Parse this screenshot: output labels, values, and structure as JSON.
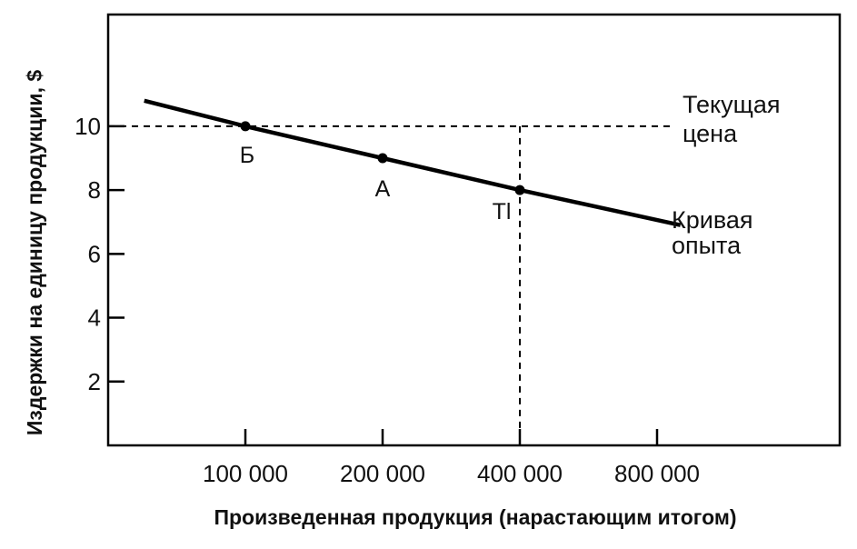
{
  "chart_data": {
    "type": "line",
    "title": "",
    "xlabel": "Произведенная продукция (нарастающим итогом)",
    "ylabel": "Издержки на единицу продукции, $",
    "x_categories": [
      "100 000",
      "200 000",
      "400 000",
      "800 000"
    ],
    "x_scale": "log2",
    "y_ticks": [
      2,
      4,
      6,
      8,
      10
    ],
    "ylim": [
      0,
      13.5
    ],
    "grid": false,
    "series": [
      {
        "name": "Кривая опыта",
        "color": "#000000",
        "x": [
          "60 000",
          "100 000",
          "200 000",
          "400 000",
          "900 000"
        ],
        "values": [
          10.8,
          10,
          9,
          8,
          6.9
        ]
      }
    ],
    "points": [
      {
        "label": "Б",
        "x_index": 0,
        "y": 10
      },
      {
        "label": "А",
        "x_index": 1,
        "y": 9
      },
      {
        "label": "Tl",
        "x_index": 2,
        "y": 8
      }
    ],
    "annotations": {
      "current_price_line1": "Текущая",
      "current_price_line2": "цена",
      "current_price_value": 10,
      "curve_label_line1": "Кривая",
      "curve_label_line2": "опыта"
    }
  }
}
